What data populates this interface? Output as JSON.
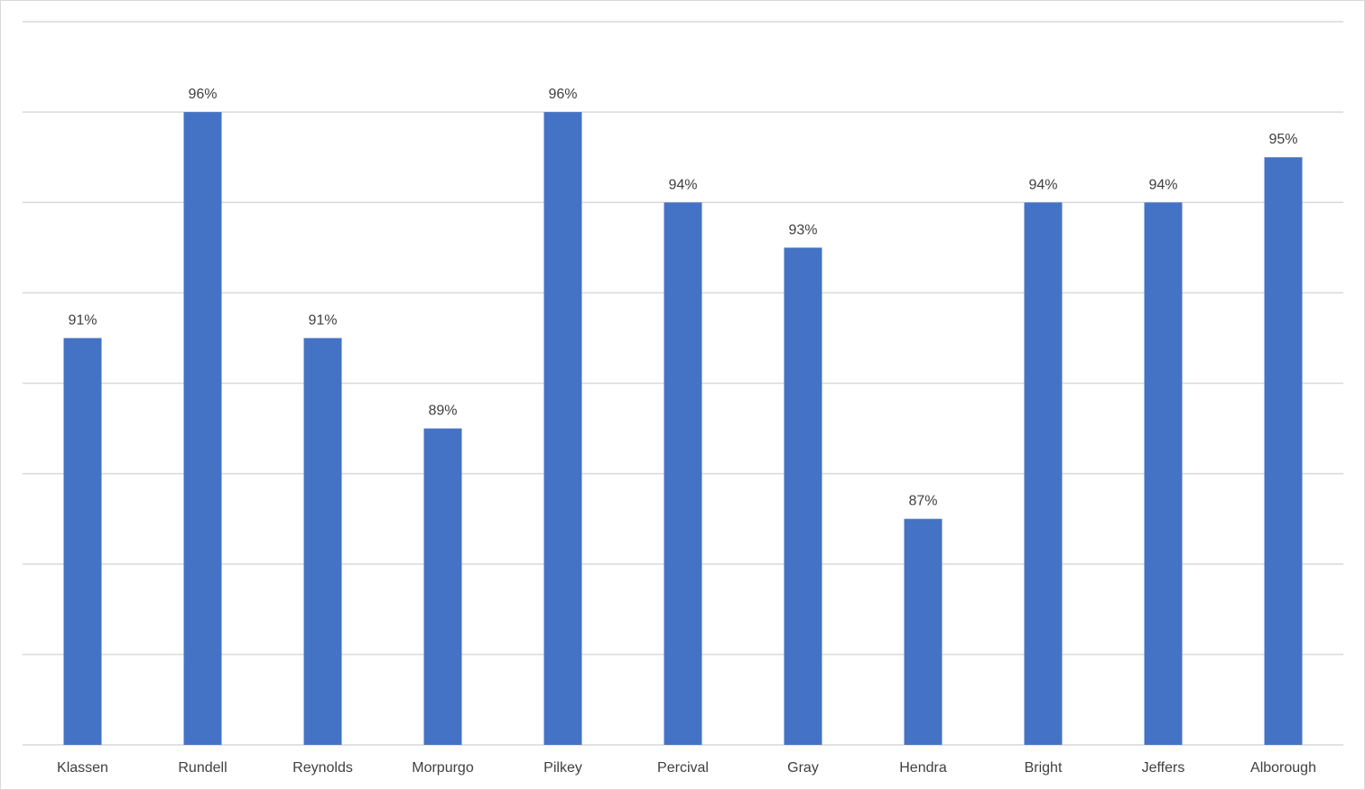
{
  "chart_data": {
    "type": "bar",
    "categories": [
      "Klassen",
      "Rundell",
      "Reynolds",
      "Morpurgo",
      "Pilkey",
      "Percival",
      "Gray",
      "Hendra",
      "Bright",
      "Jeffers",
      "Alborough"
    ],
    "values": [
      91,
      96,
      91,
      89,
      96,
      94,
      93,
      87,
      94,
      94,
      95
    ],
    "data_labels": [
      "91%",
      "96%",
      "91%",
      "89%",
      "96%",
      "94%",
      "93%",
      "87%",
      "94%",
      "94%",
      "95%"
    ],
    "ylim": [
      82,
      98
    ],
    "y_gridline_step": 2,
    "y_tick_labels_shown": false,
    "grid": true,
    "legend": "none",
    "bar_color": "#4472C4",
    "gridline_color": "#D9D9D9",
    "text_color": "#404040"
  }
}
